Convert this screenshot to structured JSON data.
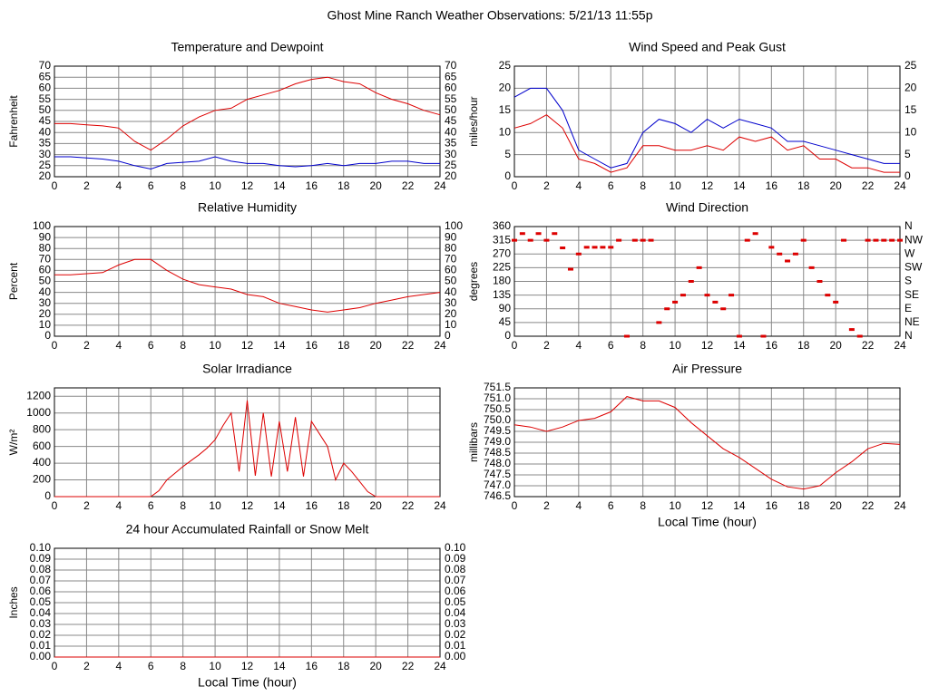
{
  "title": "Ghost Mine Ranch Weather Observations: 5/21/13 11:55p",
  "chart_data": [
    {
      "type": "line",
      "title": "Temperature and Dewpoint",
      "ylabel": "Fahrenheit",
      "grid": true,
      "right_axis": true,
      "xlim": [
        0,
        24
      ],
      "xticks": [
        0,
        2,
        4,
        6,
        8,
        10,
        12,
        14,
        16,
        18,
        20,
        22,
        24
      ],
      "ylim": [
        20,
        70
      ],
      "yticks": [
        20,
        25,
        30,
        35,
        40,
        45,
        50,
        55,
        60,
        65,
        70
      ],
      "x": [
        0,
        1,
        2,
        3,
        4,
        5,
        6,
        7,
        8,
        9,
        10,
        11,
        12,
        13,
        14,
        15,
        16,
        17,
        18,
        19,
        20,
        21,
        22,
        23,
        24
      ],
      "series": [
        {
          "color": "#dd0000",
          "values": [
            44,
            44,
            43.5,
            43,
            42,
            36,
            32,
            37,
            43,
            47,
            50,
            51,
            55,
            57,
            59,
            62,
            64,
            65,
            63,
            62,
            58,
            55,
            53,
            50,
            48
          ]
        },
        {
          "color": "#0000cc",
          "values": [
            29,
            29,
            28.5,
            28,
            27,
            25,
            23.5,
            26,
            26.5,
            27,
            29,
            27,
            26,
            26,
            25,
            24.5,
            25,
            26,
            25,
            26,
            26,
            27,
            27,
            26,
            26
          ]
        }
      ]
    },
    {
      "type": "line",
      "title": "Wind Speed and Peak Gust",
      "ylabel": "miles/hour",
      "grid": true,
      "right_axis": true,
      "xlim": [
        0,
        24
      ],
      "xticks": [
        0,
        2,
        4,
        6,
        8,
        10,
        12,
        14,
        16,
        18,
        20,
        22,
        24
      ],
      "ylim": [
        0,
        25
      ],
      "yticks": [
        0,
        5,
        10,
        15,
        20,
        25
      ],
      "x": [
        0,
        1,
        2,
        3,
        4,
        5,
        6,
        7,
        8,
        9,
        10,
        11,
        12,
        13,
        14,
        15,
        16,
        17,
        18,
        19,
        20,
        21,
        22,
        23,
        24
      ],
      "series": [
        {
          "color": "#0000cc",
          "values": [
            18,
            20,
            20,
            15,
            6,
            4,
            2,
            3,
            10,
            13,
            12,
            10,
            13,
            11,
            13,
            12,
            11,
            8,
            8,
            7,
            6,
            5,
            4,
            3,
            3
          ]
        },
        {
          "color": "#dd0000",
          "values": [
            11,
            12,
            14,
            11,
            4,
            3,
            1,
            2,
            7,
            7,
            6,
            6,
            7,
            6,
            9,
            8,
            9,
            6,
            7,
            4,
            4,
            2,
            2,
            1,
            1
          ]
        }
      ]
    },
    {
      "type": "line",
      "title": "Relative Humidity",
      "ylabel": "Percent",
      "grid": true,
      "right_axis": true,
      "xlim": [
        0,
        24
      ],
      "xticks": [
        0,
        2,
        4,
        6,
        8,
        10,
        12,
        14,
        16,
        18,
        20,
        22,
        24
      ],
      "ylim": [
        0,
        100
      ],
      "yticks": [
        0,
        10,
        20,
        30,
        40,
        50,
        60,
        70,
        80,
        90,
        100
      ],
      "x": [
        0,
        1,
        2,
        3,
        4,
        5,
        6,
        7,
        8,
        9,
        10,
        11,
        12,
        13,
        14,
        15,
        16,
        17,
        18,
        19,
        20,
        21,
        22,
        23,
        24
      ],
      "series": [
        {
          "color": "#dd0000",
          "values": [
            56,
            56,
            57,
            58,
            65,
            70,
            70,
            60,
            52,
            47,
            45,
            43,
            38,
            36,
            30,
            27,
            24,
            22,
            24,
            26,
            30,
            33,
            36,
            38,
            40
          ]
        }
      ]
    },
    {
      "type": "scatter",
      "title": "Wind Direction",
      "ylabel": "degrees",
      "grid": true,
      "xlim": [
        0,
        24
      ],
      "xticks": [
        0,
        2,
        4,
        6,
        8,
        10,
        12,
        14,
        16,
        18,
        20,
        22,
        24
      ],
      "ylim": [
        0,
        360
      ],
      "yticks": [
        0,
        45,
        90,
        135,
        180,
        225,
        270,
        315,
        360
      ],
      "y2lim": [
        0,
        360
      ],
      "y2ticks": [
        {
          "value": 0,
          "label": "N"
        },
        {
          "value": 45,
          "label": "NE"
        },
        {
          "value": 90,
          "label": "E"
        },
        {
          "value": 135,
          "label": "SE"
        },
        {
          "value": 180,
          "label": "S"
        },
        {
          "value": 225,
          "label": "SW"
        },
        {
          "value": 270,
          "label": "W"
        },
        {
          "value": 315,
          "label": "NW"
        },
        {
          "value": 360,
          "label": "N"
        }
      ],
      "x": [
        0,
        0.5,
        1,
        1.5,
        2,
        2.5,
        3,
        3.5,
        4,
        4.5,
        5,
        5.5,
        6,
        6.5,
        7,
        7.5,
        8,
        8.5,
        9,
        9.5,
        10,
        10.5,
        11,
        11.5,
        12,
        12.5,
        13,
        13.5,
        14,
        14.5,
        15,
        15.5,
        16,
        16.5,
        17,
        17.5,
        18,
        18.5,
        19,
        19.5,
        20,
        20.5,
        21,
        21.5,
        22,
        22.5,
        23,
        23.5,
        24
      ],
      "series": [
        {
          "color": "#dd0000",
          "values": [
            315,
            337,
            315,
            337,
            315,
            337,
            290,
            220,
            270,
            292,
            292,
            292,
            292,
            315,
            0,
            315,
            315,
            315,
            45,
            90,
            112,
            135,
            180,
            225,
            135,
            112,
            90,
            135,
            0,
            315,
            337,
            0,
            292,
            270,
            247,
            270,
            315,
            225,
            180,
            135,
            112,
            315,
            22,
            0,
            315,
            315,
            315,
            315,
            315
          ]
        }
      ]
    },
    {
      "type": "line",
      "title": "Solar Irradiance",
      "ylabel": "W/m²",
      "grid": true,
      "xlim": [
        0,
        24
      ],
      "xticks": [
        0,
        2,
        4,
        6,
        8,
        10,
        12,
        14,
        16,
        18,
        20,
        22,
        24
      ],
      "ylim": [
        0,
        1300
      ],
      "yticks": [
        0,
        200,
        400,
        600,
        800,
        1000,
        1200
      ],
      "x": [
        0,
        0.5,
        1,
        1.5,
        2,
        2.5,
        3,
        3.5,
        4,
        4.5,
        5,
        5.5,
        6,
        6.5,
        7,
        7.5,
        8,
        8.5,
        9,
        9.5,
        10,
        10.5,
        11,
        11.5,
        12,
        12.5,
        13,
        13.5,
        14,
        14.5,
        15,
        15.5,
        16,
        16.5,
        17,
        17.5,
        18,
        18.5,
        19,
        19.5,
        20,
        20.5,
        21,
        21.5,
        22,
        22.5,
        23,
        23.5,
        24
      ],
      "series": [
        {
          "color": "#dd0000",
          "values": [
            0,
            0,
            0,
            0,
            0,
            0,
            0,
            0,
            0,
            0,
            0,
            0,
            0,
            70,
            200,
            280,
            360,
            430,
            500,
            580,
            680,
            850,
            1000,
            300,
            1150,
            250,
            1000,
            240,
            900,
            300,
            950,
            240,
            900,
            750,
            600,
            200,
            400,
            300,
            180,
            60,
            0,
            0,
            0,
            0,
            0,
            0,
            0,
            0,
            0
          ]
        }
      ]
    },
    {
      "type": "line",
      "title": "Air Pressure",
      "ylabel": "millibars",
      "xlabel": "Local Time (hour)",
      "grid": true,
      "xlim": [
        0,
        24
      ],
      "xticks": [
        0,
        2,
        4,
        6,
        8,
        10,
        12,
        14,
        16,
        18,
        20,
        22,
        24
      ],
      "ylim": [
        746.5,
        751.5
      ],
      "yticks": [
        746.5,
        {
          "value": 747,
          "label": "747.0"
        },
        747.5,
        {
          "value": 748,
          "label": "748.0"
        },
        748.5,
        {
          "value": 749,
          "label": "749.0"
        },
        749.5,
        {
          "value": 750,
          "label": "750.0"
        },
        750.5,
        {
          "value": 751,
          "label": "751.0"
        },
        751.5
      ],
      "x": [
        0,
        1,
        2,
        3,
        4,
        5,
        6,
        7,
        8,
        9,
        10,
        11,
        12,
        13,
        14,
        15,
        16,
        17,
        18,
        19,
        20,
        21,
        22,
        23,
        24
      ],
      "series": [
        {
          "color": "#dd0000",
          "values": [
            749.8,
            749.7,
            749.5,
            749.7,
            750.0,
            750.1,
            750.4,
            751.1,
            750.9,
            750.9,
            750.6,
            749.9,
            749.3,
            748.7,
            748.3,
            747.8,
            747.3,
            746.95,
            746.85,
            747.0,
            747.6,
            748.1,
            748.7,
            748.95,
            748.9
          ]
        }
      ]
    },
    {
      "type": "line",
      "title": "24 hour Accumulated Rainfall or Snow Melt",
      "ylabel": "Inches",
      "xlabel": "Local Time (hour)",
      "grid": true,
      "right_axis": true,
      "xlim": [
        0,
        24
      ],
      "xticks": [
        0,
        2,
        4,
        6,
        8,
        10,
        12,
        14,
        16,
        18,
        20,
        22,
        24
      ],
      "ylim": [
        0,
        0.1
      ],
      "yticks": [
        {
          "value": 0,
          "label": "0.00"
        },
        0.01,
        0.02,
        0.03,
        0.04,
        0.05,
        0.06,
        0.07,
        0.08,
        0.09,
        {
          "value": 0.1,
          "label": "0.10"
        }
      ],
      "x": [
        0,
        24
      ],
      "series": [
        {
          "color": "#dd0000",
          "values": [
            0,
            0
          ]
        }
      ]
    }
  ]
}
